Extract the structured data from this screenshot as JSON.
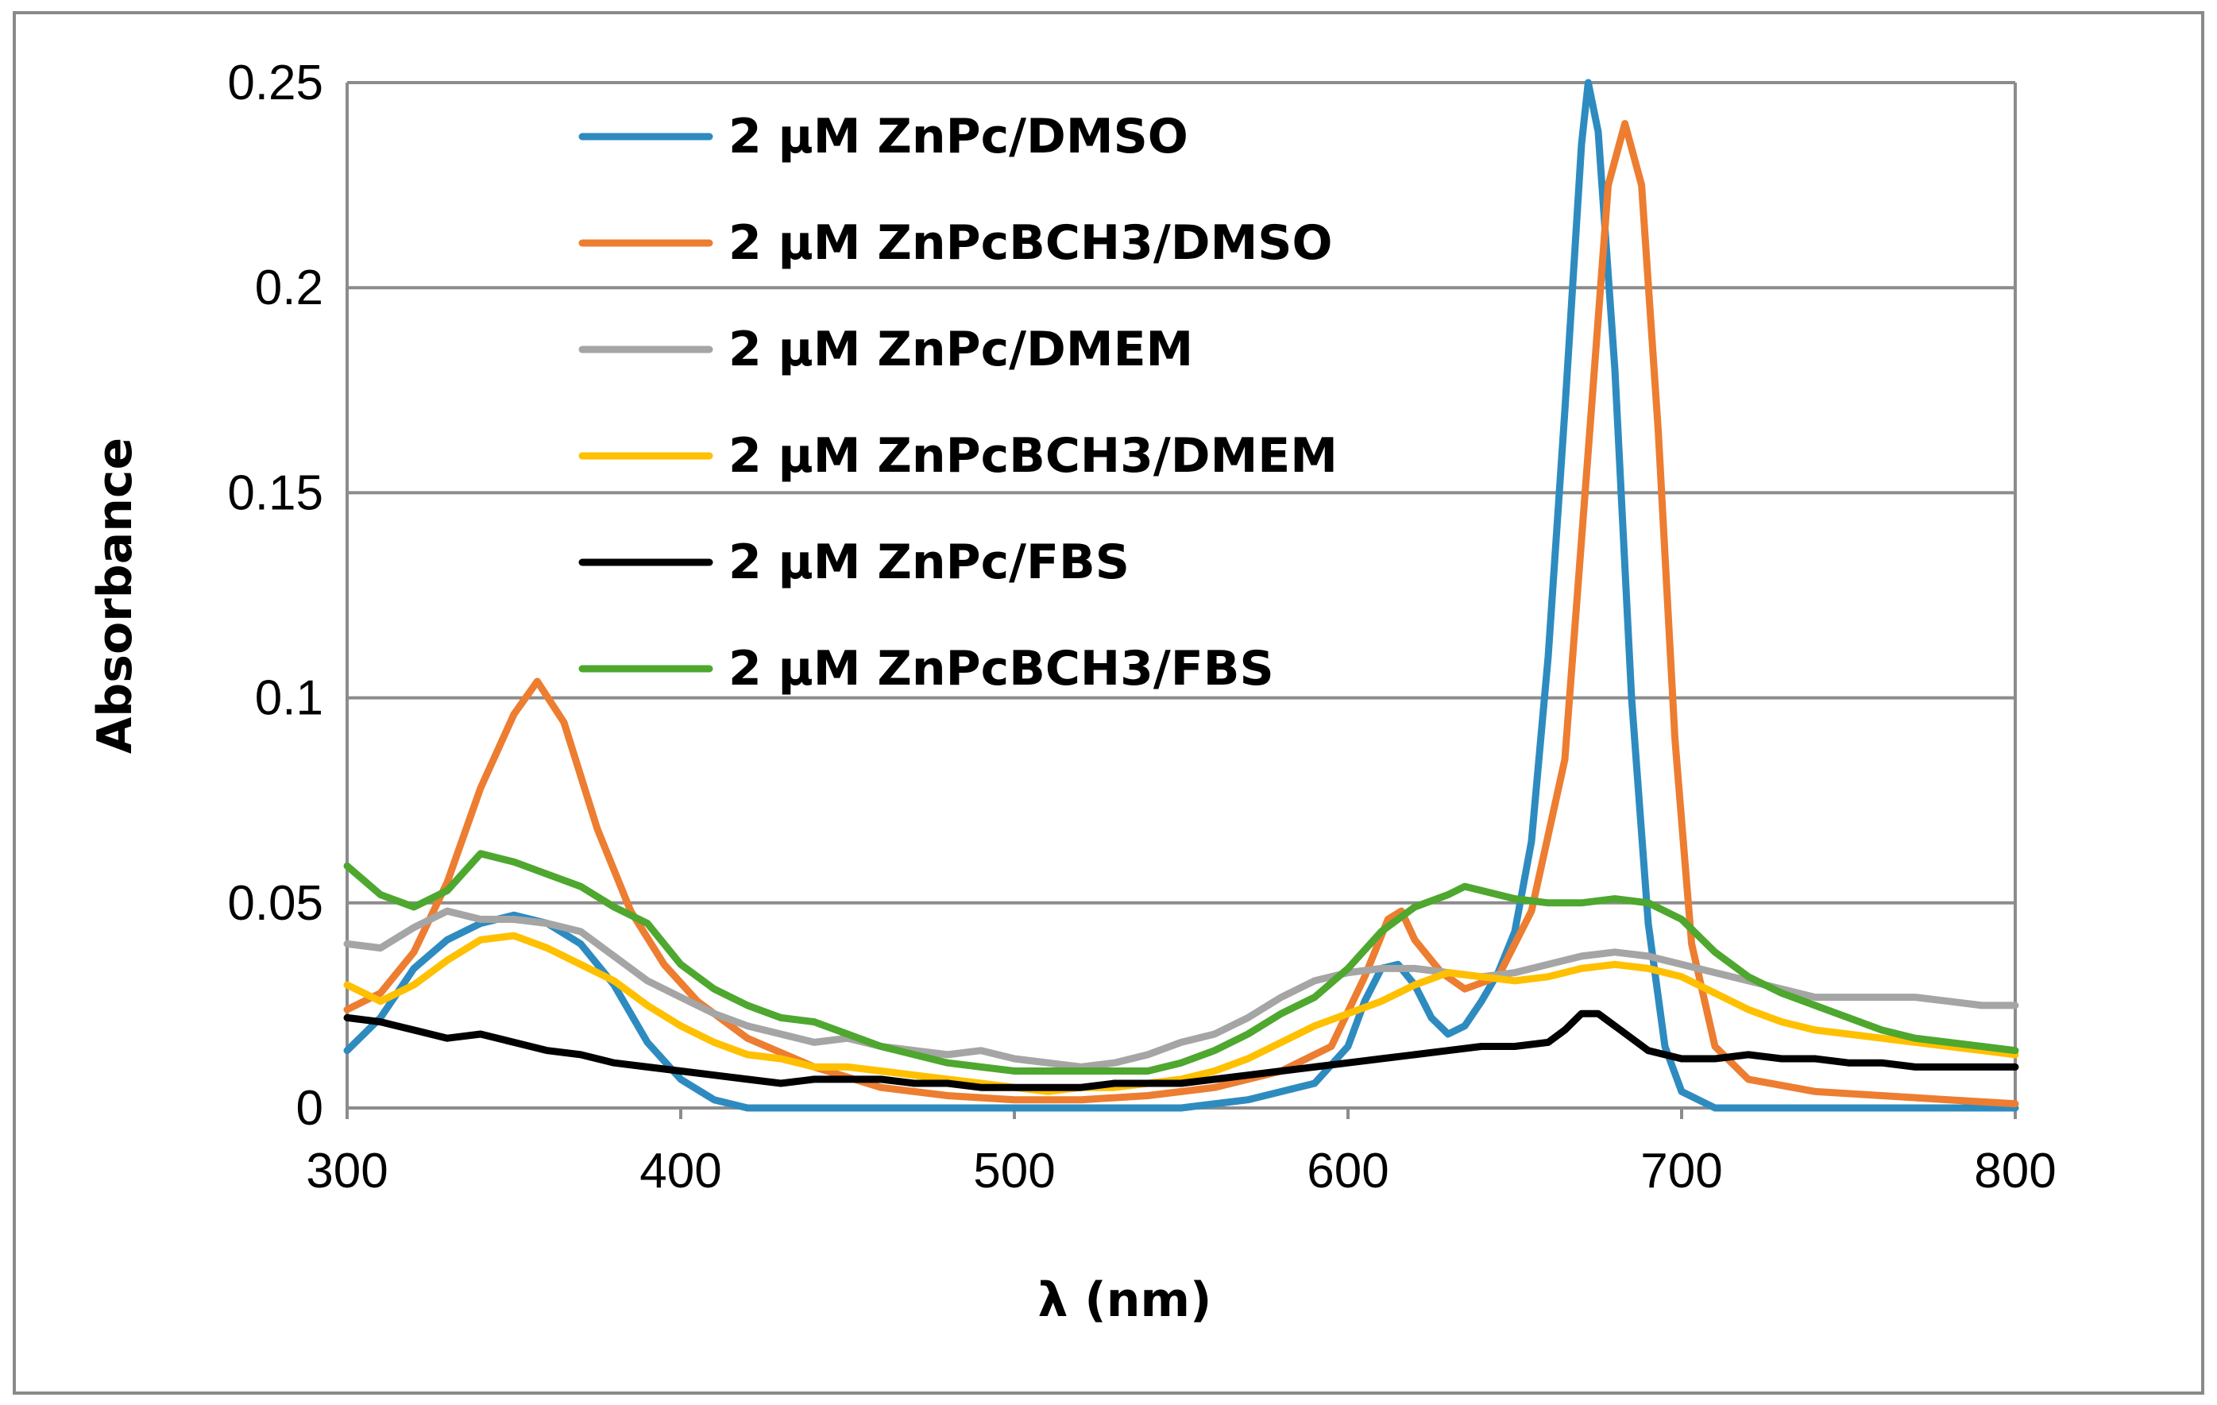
{
  "chart_data": {
    "type": "line",
    "title": "",
    "xlabel": "λ (nm)",
    "ylabel": "Absorbance",
    "xlim": [
      300,
      800
    ],
    "ylim": [
      0,
      0.25
    ],
    "xticks": [
      300,
      400,
      500,
      600,
      700,
      800
    ],
    "xtick_labels": [
      "300",
      "400",
      "500",
      "600",
      "700",
      "800"
    ],
    "yticks": [
      0,
      0.05,
      0.1,
      0.15,
      0.2,
      0.25
    ],
    "ytick_labels": [
      "0",
      "0.05",
      "0.1",
      "0.15",
      "0.2",
      "0.25"
    ],
    "grid": "horizontal",
    "legend_position": "top-left inside",
    "series": [
      {
        "name": "2 μM ZnPc/DMSO",
        "color": "#2E8BC0",
        "points": [
          [
            300,
            0.014
          ],
          [
            310,
            0.022
          ],
          [
            320,
            0.034
          ],
          [
            330,
            0.041
          ],
          [
            340,
            0.045
          ],
          [
            350,
            0.047
          ],
          [
            360,
            0.045
          ],
          [
            370,
            0.04
          ],
          [
            380,
            0.03
          ],
          [
            390,
            0.016
          ],
          [
            400,
            0.007
          ],
          [
            410,
            0.002
          ],
          [
            420,
            0.0
          ],
          [
            450,
            0.0
          ],
          [
            500,
            0.0
          ],
          [
            550,
            0.0
          ],
          [
            570,
            0.002
          ],
          [
            590,
            0.006
          ],
          [
            600,
            0.015
          ],
          [
            605,
            0.026
          ],
          [
            610,
            0.034
          ],
          [
            615,
            0.035
          ],
          [
            620,
            0.03
          ],
          [
            625,
            0.022
          ],
          [
            630,
            0.018
          ],
          [
            635,
            0.02
          ],
          [
            640,
            0.026
          ],
          [
            645,
            0.033
          ],
          [
            650,
            0.043
          ],
          [
            655,
            0.065
          ],
          [
            660,
            0.11
          ],
          [
            665,
            0.17
          ],
          [
            670,
            0.235
          ],
          [
            672,
            0.25
          ],
          [
            675,
            0.238
          ],
          [
            680,
            0.18
          ],
          [
            685,
            0.1
          ],
          [
            690,
            0.045
          ],
          [
            695,
            0.015
          ],
          [
            700,
            0.004
          ],
          [
            710,
            0.0
          ],
          [
            800,
            0.0
          ]
        ]
      },
      {
        "name": "2 μM ZnPcBCH3/DMSO",
        "color": "#ED7D31",
        "points": [
          [
            300,
            0.024
          ],
          [
            310,
            0.028
          ],
          [
            320,
            0.038
          ],
          [
            330,
            0.055
          ],
          [
            340,
            0.078
          ],
          [
            350,
            0.096
          ],
          [
            357,
            0.104
          ],
          [
            365,
            0.094
          ],
          [
            375,
            0.068
          ],
          [
            385,
            0.048
          ],
          [
            395,
            0.035
          ],
          [
            405,
            0.026
          ],
          [
            420,
            0.017
          ],
          [
            440,
            0.01
          ],
          [
            460,
            0.005
          ],
          [
            480,
            0.003
          ],
          [
            500,
            0.002
          ],
          [
            520,
            0.002
          ],
          [
            540,
            0.003
          ],
          [
            560,
            0.005
          ],
          [
            580,
            0.009
          ],
          [
            595,
            0.015
          ],
          [
            605,
            0.032
          ],
          [
            612,
            0.046
          ],
          [
            616,
            0.048
          ],
          [
            620,
            0.041
          ],
          [
            628,
            0.033
          ],
          [
            635,
            0.029
          ],
          [
            645,
            0.032
          ],
          [
            655,
            0.048
          ],
          [
            665,
            0.085
          ],
          [
            672,
            0.16
          ],
          [
            678,
            0.225
          ],
          [
            683,
            0.24
          ],
          [
            688,
            0.225
          ],
          [
            693,
            0.165
          ],
          [
            698,
            0.09
          ],
          [
            703,
            0.04
          ],
          [
            710,
            0.015
          ],
          [
            720,
            0.007
          ],
          [
            740,
            0.004
          ],
          [
            760,
            0.003
          ],
          [
            780,
            0.002
          ],
          [
            800,
            0.001
          ]
        ]
      },
      {
        "name": "2 μM ZnPc/DMEM",
        "color": "#A5A5A5",
        "points": [
          [
            300,
            0.04
          ],
          [
            310,
            0.039
          ],
          [
            320,
            0.044
          ],
          [
            330,
            0.048
          ],
          [
            340,
            0.046
          ],
          [
            350,
            0.046
          ],
          [
            360,
            0.045
          ],
          [
            370,
            0.043
          ],
          [
            380,
            0.037
          ],
          [
            390,
            0.031
          ],
          [
            400,
            0.027
          ],
          [
            410,
            0.023
          ],
          [
            420,
            0.02
          ],
          [
            430,
            0.018
          ],
          [
            440,
            0.016
          ],
          [
            450,
            0.017
          ],
          [
            460,
            0.015
          ],
          [
            470,
            0.014
          ],
          [
            480,
            0.013
          ],
          [
            490,
            0.014
          ],
          [
            500,
            0.012
          ],
          [
            510,
            0.011
          ],
          [
            520,
            0.01
          ],
          [
            530,
            0.011
          ],
          [
            540,
            0.013
          ],
          [
            550,
            0.016
          ],
          [
            560,
            0.018
          ],
          [
            570,
            0.022
          ],
          [
            580,
            0.027
          ],
          [
            590,
            0.031
          ],
          [
            600,
            0.033
          ],
          [
            610,
            0.034
          ],
          [
            620,
            0.034
          ],
          [
            630,
            0.033
          ],
          [
            640,
            0.032
          ],
          [
            650,
            0.033
          ],
          [
            660,
            0.035
          ],
          [
            670,
            0.037
          ],
          [
            680,
            0.038
          ],
          [
            690,
            0.037
          ],
          [
            700,
            0.035
          ],
          [
            710,
            0.033
          ],
          [
            720,
            0.031
          ],
          [
            730,
            0.029
          ],
          [
            740,
            0.027
          ],
          [
            750,
            0.027
          ],
          [
            760,
            0.027
          ],
          [
            770,
            0.027
          ],
          [
            780,
            0.026
          ],
          [
            790,
            0.025
          ],
          [
            800,
            0.025
          ]
        ]
      },
      {
        "name": "2 μM ZnPcBCH3/DMEM",
        "color": "#FFC000",
        "points": [
          [
            300,
            0.03
          ],
          [
            310,
            0.026
          ],
          [
            320,
            0.03
          ],
          [
            330,
            0.036
          ],
          [
            340,
            0.041
          ],
          [
            350,
            0.042
          ],
          [
            360,
            0.039
          ],
          [
            370,
            0.035
          ],
          [
            380,
            0.031
          ],
          [
            390,
            0.025
          ],
          [
            400,
            0.02
          ],
          [
            410,
            0.016
          ],
          [
            420,
            0.013
          ],
          [
            430,
            0.012
          ],
          [
            440,
            0.01
          ],
          [
            450,
            0.01
          ],
          [
            460,
            0.009
          ],
          [
            470,
            0.008
          ],
          [
            480,
            0.007
          ],
          [
            490,
            0.006
          ],
          [
            500,
            0.005
          ],
          [
            510,
            0.004
          ],
          [
            520,
            0.005
          ],
          [
            530,
            0.005
          ],
          [
            540,
            0.006
          ],
          [
            550,
            0.007
          ],
          [
            560,
            0.009
          ],
          [
            570,
            0.012
          ],
          [
            580,
            0.016
          ],
          [
            590,
            0.02
          ],
          [
            600,
            0.023
          ],
          [
            610,
            0.026
          ],
          [
            620,
            0.03
          ],
          [
            630,
            0.033
          ],
          [
            640,
            0.032
          ],
          [
            650,
            0.031
          ],
          [
            660,
            0.032
          ],
          [
            670,
            0.034
          ],
          [
            680,
            0.035
          ],
          [
            690,
            0.034
          ],
          [
            700,
            0.032
          ],
          [
            710,
            0.028
          ],
          [
            720,
            0.024
          ],
          [
            730,
            0.021
          ],
          [
            740,
            0.019
          ],
          [
            750,
            0.018
          ],
          [
            760,
            0.017
          ],
          [
            770,
            0.016
          ],
          [
            780,
            0.015
          ],
          [
            790,
            0.014
          ],
          [
            800,
            0.013
          ]
        ]
      },
      {
        "name": "2 μM ZnPc/FBS",
        "color": "#000000",
        "points": [
          [
            300,
            0.022
          ],
          [
            310,
            0.021
          ],
          [
            320,
            0.019
          ],
          [
            330,
            0.017
          ],
          [
            340,
            0.018
          ],
          [
            350,
            0.016
          ],
          [
            360,
            0.014
          ],
          [
            370,
            0.013
          ],
          [
            380,
            0.011
          ],
          [
            390,
            0.01
          ],
          [
            400,
            0.009
          ],
          [
            410,
            0.008
          ],
          [
            420,
            0.007
          ],
          [
            430,
            0.006
          ],
          [
            440,
            0.007
          ],
          [
            450,
            0.007
          ],
          [
            460,
            0.007
          ],
          [
            470,
            0.006
          ],
          [
            480,
            0.006
          ],
          [
            490,
            0.005
          ],
          [
            500,
            0.005
          ],
          [
            510,
            0.005
          ],
          [
            520,
            0.005
          ],
          [
            530,
            0.006
          ],
          [
            540,
            0.006
          ],
          [
            550,
            0.006
          ],
          [
            560,
            0.007
          ],
          [
            570,
            0.008
          ],
          [
            580,
            0.009
          ],
          [
            590,
            0.01
          ],
          [
            600,
            0.011
          ],
          [
            610,
            0.012
          ],
          [
            620,
            0.013
          ],
          [
            630,
            0.014
          ],
          [
            640,
            0.015
          ],
          [
            650,
            0.015
          ],
          [
            660,
            0.016
          ],
          [
            665,
            0.019
          ],
          [
            670,
            0.023
          ],
          [
            675,
            0.023
          ],
          [
            680,
            0.02
          ],
          [
            690,
            0.014
          ],
          [
            700,
            0.012
          ],
          [
            710,
            0.012
          ],
          [
            720,
            0.013
          ],
          [
            730,
            0.012
          ],
          [
            740,
            0.012
          ],
          [
            750,
            0.011
          ],
          [
            760,
            0.011
          ],
          [
            770,
            0.01
          ],
          [
            780,
            0.01
          ],
          [
            790,
            0.01
          ],
          [
            800,
            0.01
          ]
        ]
      },
      {
        "name": "2 μM ZnPcBCH3/FBS",
        "color": "#4EA72E",
        "points": [
          [
            300,
            0.059
          ],
          [
            310,
            0.052
          ],
          [
            320,
            0.049
          ],
          [
            330,
            0.053
          ],
          [
            340,
            0.062
          ],
          [
            350,
            0.06
          ],
          [
            360,
            0.057
          ],
          [
            370,
            0.054
          ],
          [
            380,
            0.049
          ],
          [
            390,
            0.045
          ],
          [
            400,
            0.035
          ],
          [
            410,
            0.029
          ],
          [
            420,
            0.025
          ],
          [
            430,
            0.022
          ],
          [
            440,
            0.021
          ],
          [
            450,
            0.018
          ],
          [
            460,
            0.015
          ],
          [
            470,
            0.013
          ],
          [
            480,
            0.011
          ],
          [
            490,
            0.01
          ],
          [
            500,
            0.009
          ],
          [
            510,
            0.009
          ],
          [
            520,
            0.009
          ],
          [
            530,
            0.009
          ],
          [
            540,
            0.009
          ],
          [
            550,
            0.011
          ],
          [
            560,
            0.014
          ],
          [
            570,
            0.018
          ],
          [
            580,
            0.023
          ],
          [
            590,
            0.027
          ],
          [
            600,
            0.034
          ],
          [
            610,
            0.043
          ],
          [
            620,
            0.049
          ],
          [
            630,
            0.052
          ],
          [
            635,
            0.054
          ],
          [
            640,
            0.053
          ],
          [
            650,
            0.051
          ],
          [
            660,
            0.05
          ],
          [
            670,
            0.05
          ],
          [
            680,
            0.051
          ],
          [
            690,
            0.05
          ],
          [
            700,
            0.046
          ],
          [
            710,
            0.038
          ],
          [
            720,
            0.032
          ],
          [
            730,
            0.028
          ],
          [
            740,
            0.025
          ],
          [
            750,
            0.022
          ],
          [
            760,
            0.019
          ],
          [
            770,
            0.017
          ],
          [
            780,
            0.016
          ],
          [
            790,
            0.015
          ],
          [
            800,
            0.014
          ]
        ]
      }
    ]
  }
}
